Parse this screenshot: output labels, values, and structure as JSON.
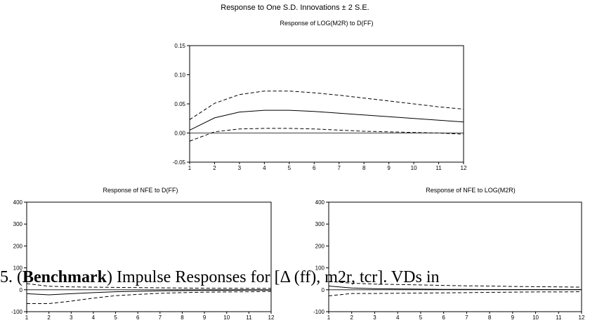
{
  "main_title": "Response to One S.D. Innovations ± 2 S.E.",
  "caption": {
    "number_part": "5. (",
    "bold_word": "Benchmark",
    "rest": ") Impulse Responses for [Δ (ff), m2r, tcr]. VDs in"
  },
  "chart_data": [
    {
      "type": "line",
      "title": "Response of LOG(M2R) to D(FF)",
      "x": [
        1,
        2,
        3,
        4,
        5,
        6,
        7,
        8,
        9,
        10,
        11,
        12
      ],
      "ylim": [
        -0.05,
        0.15
      ],
      "yticks": [
        "-0.05",
        "0.00",
        "0.05",
        "0.10",
        "0.15"
      ],
      "xticks": [
        "1",
        "2",
        "3",
        "4",
        "5",
        "6",
        "7",
        "8",
        "9",
        "10",
        "11",
        "12"
      ],
      "zero_line": true,
      "series": [
        {
          "style": "solid",
          "values": [
            0.005,
            0.026,
            0.036,
            0.039,
            0.039,
            0.037,
            0.034,
            0.031,
            0.028,
            0.025,
            0.022,
            0.019
          ]
        },
        {
          "style": "dashed",
          "values": [
            0.023,
            0.051,
            0.066,
            0.072,
            0.072,
            0.069,
            0.065,
            0.06,
            0.055,
            0.05,
            0.045,
            0.041
          ]
        },
        {
          "style": "dashed",
          "values": [
            -0.014,
            0.002,
            0.007,
            0.008,
            0.008,
            0.007,
            0.005,
            0.003,
            0.002,
            0.001,
            0.0,
            -0.002
          ]
        }
      ]
    },
    {
      "type": "line",
      "title": "Response of NFE to D(FF)",
      "x": [
        1,
        2,
        3,
        4,
        5,
        6,
        7,
        8,
        9,
        10,
        11,
        12
      ],
      "ylim": [
        -100,
        400
      ],
      "yticks": [
        "-100",
        "0",
        "100",
        "200",
        "300",
        "400"
      ],
      "xticks": [
        "1",
        "2",
        "3",
        "4",
        "5",
        "6",
        "7",
        "8",
        "9",
        "10",
        "11",
        "12"
      ],
      "zero_line": true,
      "series": [
        {
          "style": "solid",
          "values": [
            -18,
            -23,
            -18,
            -13,
            -9,
            -7,
            -5,
            -4,
            -3,
            -3,
            -2,
            -2
          ]
        },
        {
          "style": "dashed",
          "values": [
            28,
            16,
            13,
            12,
            11,
            10,
            9,
            8,
            7,
            7,
            6,
            6
          ]
        },
        {
          "style": "dashed",
          "values": [
            -63,
            -63,
            -52,
            -38,
            -27,
            -21,
            -16,
            -13,
            -11,
            -10,
            -9,
            -8
          ]
        }
      ]
    },
    {
      "type": "line",
      "title": "Response of NFE to LOG(M2R)",
      "x": [
        1,
        2,
        3,
        4,
        5,
        6,
        7,
        8,
        9,
        10,
        11,
        12
      ],
      "ylim": [
        -100,
        400
      ],
      "yticks": [
        "-100",
        "0",
        "100",
        "200",
        "300",
        "400"
      ],
      "xticks": [
        "1",
        "2",
        "3",
        "4",
        "5",
        "6",
        "7",
        "8",
        "9",
        "10",
        "11",
        "12"
      ],
      "zero_line": true,
      "series": [
        {
          "style": "solid",
          "values": [
            17,
            8,
            5,
            4,
            3,
            2,
            2,
            1,
            1,
            1,
            1,
            1
          ]
        },
        {
          "style": "dashed",
          "values": [
            38,
            30,
            26,
            24,
            22,
            20,
            18,
            17,
            15,
            14,
            13,
            12
          ]
        },
        {
          "style": "dashed",
          "values": [
            -28,
            -17,
            -17,
            -16,
            -15,
            -14,
            -13,
            -12,
            -11,
            -10,
            -10,
            -9
          ]
        }
      ]
    }
  ]
}
